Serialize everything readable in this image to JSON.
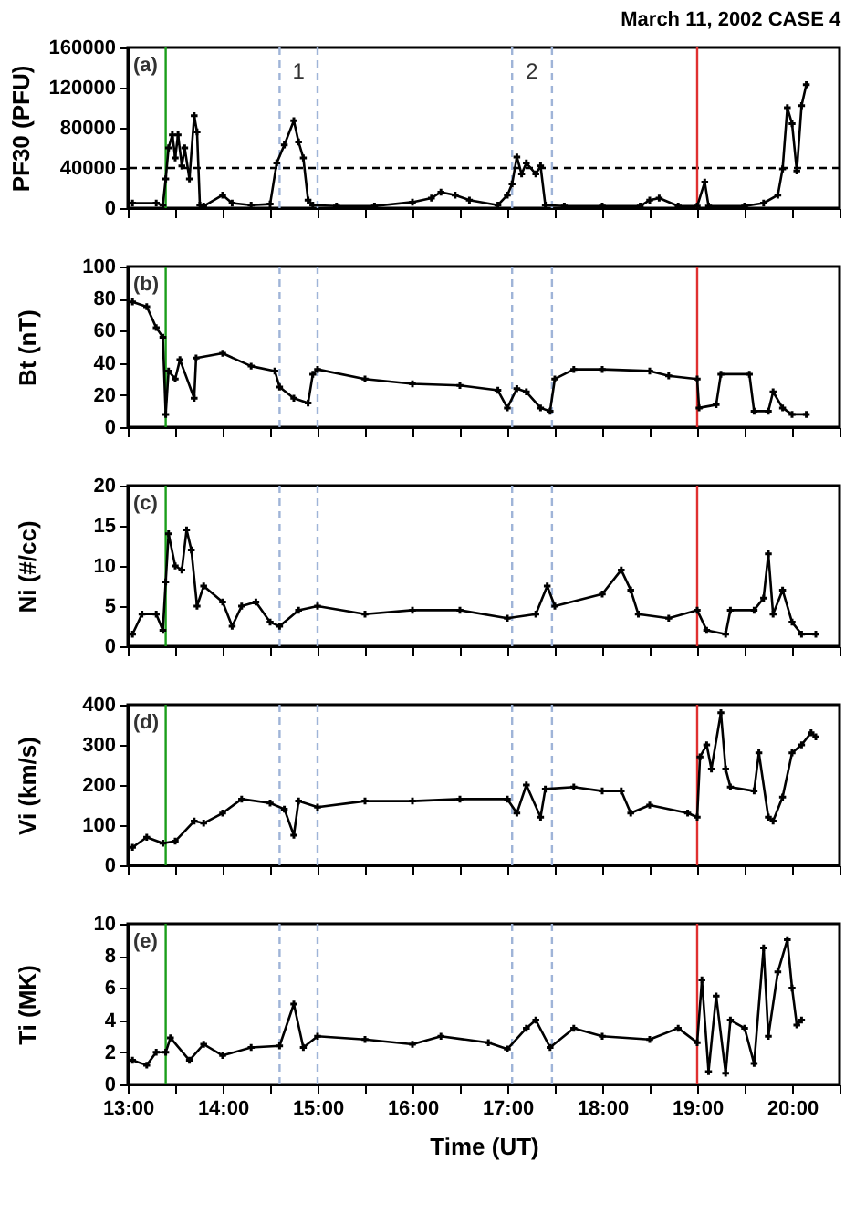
{
  "chart_data": [
    {
      "type": "line",
      "title": "March 11, 2002 CASE 4",
      "ylabel": "PF30 (PFU)",
      "marker": "cross",
      "tick_labels": "y",
      "xlim": [
        13,
        20.5
      ],
      "xticks": [
        {
          "value": 13,
          "label": null
        },
        {
          "value": 13.5,
          "label": null
        },
        {
          "value": 14,
          "label": null
        },
        {
          "value": 14.5,
          "label": null
        },
        {
          "value": 15,
          "label": null
        },
        {
          "value": 15.5,
          "label": null
        },
        {
          "value": 16,
          "label": null
        },
        {
          "value": 16.5,
          "label": null
        },
        {
          "value": 17,
          "label": null
        },
        {
          "value": 17.5,
          "label": null
        },
        {
          "value": 18,
          "label": null
        },
        {
          "value": 18.5,
          "label": null
        },
        {
          "value": 19,
          "label": null
        },
        {
          "value": 19.5,
          "label": null
        },
        {
          "value": 20,
          "label": null
        },
        {
          "value": 20.5,
          "label": null
        }
      ],
      "ylim": [
        0,
        160000
      ],
      "yticks": [
        0,
        40000,
        80000,
        120000,
        160000
      ],
      "x": [
        13.05,
        13.3,
        13.37,
        13.4,
        13.43,
        13.47,
        13.5,
        13.53,
        13.57,
        13.6,
        13.65,
        13.7,
        13.73,
        13.76,
        13.8,
        14.0,
        14.1,
        14.3,
        14.5,
        14.57,
        14.65,
        14.75,
        14.8,
        14.85,
        14.9,
        14.95,
        15.2,
        15.6,
        16.0,
        16.2,
        16.3,
        16.45,
        16.6,
        16.9,
        17.0,
        17.05,
        17.1,
        17.15,
        17.2,
        17.3,
        17.35,
        17.4,
        17.6,
        18.0,
        18.4,
        18.5,
        18.6,
        18.8,
        19.0,
        19.08,
        19.12,
        19.5,
        19.7,
        19.85,
        19.9,
        19.95,
        20.0,
        20.05,
        20.1,
        20.15
      ],
      "series": [
        {
          "color": "#000000",
          "values": [
            5000,
            5000,
            3000,
            29000,
            60000,
            73000,
            50000,
            73000,
            42000,
            60000,
            29000,
            92000,
            76000,
            3000,
            2000,
            13000,
            5000,
            3000,
            4000,
            45000,
            63000,
            87000,
            66000,
            50000,
            8000,
            3000,
            2000,
            2000,
            6000,
            10000,
            16000,
            13000,
            8000,
            3000,
            13000,
            24000,
            51000,
            34000,
            45000,
            34000,
            42000,
            3000,
            2000,
            2000,
            2000,
            8000,
            10000,
            2000,
            2000,
            26000,
            2000,
            2000,
            5000,
            13000,
            39000,
            100000,
            84000,
            37000,
            102000,
            123000
          ]
        }
      ],
      "ref_lines": [
        {
          "axis": "y",
          "value": 40000,
          "color": "#000000",
          "line_style": "dashed"
        },
        {
          "axis": "x",
          "value": 13.4,
          "color": "#1a9e1a",
          "line_style": "solid"
        },
        {
          "axis": "x",
          "value": 14.6,
          "color": "#9fb4d8",
          "line_style": "dashed"
        },
        {
          "axis": "x",
          "value": 15.0,
          "color": "#9fb4d8",
          "line_style": "dashed"
        },
        {
          "axis": "x",
          "value": 17.05,
          "color": "#9fb4d8",
          "line_style": "dashed"
        },
        {
          "axis": "x",
          "value": 17.47,
          "color": "#9fb4d8",
          "line_style": "dashed"
        },
        {
          "axis": "x",
          "value": 19.0,
          "color": "#e03030",
          "line_style": "solid"
        }
      ],
      "annotations": [
        "(a)",
        "1",
        "2"
      ]
    },
    {
      "type": "line",
      "ylabel": "Bt (nT)",
      "marker": "cross",
      "tick_labels": "y",
      "xlim": [
        13,
        20.5
      ],
      "xticks": [
        {
          "value": 13,
          "label": null
        },
        {
          "value": 13.5,
          "label": null
        },
        {
          "value": 14,
          "label": null
        },
        {
          "value": 14.5,
          "label": null
        },
        {
          "value": 15,
          "label": null
        },
        {
          "value": 15.5,
          "label": null
        },
        {
          "value": 16,
          "label": null
        },
        {
          "value": 16.5,
          "label": null
        },
        {
          "value": 17,
          "label": null
        },
        {
          "value": 17.5,
          "label": null
        },
        {
          "value": 18,
          "label": null
        },
        {
          "value": 18.5,
          "label": null
        },
        {
          "value": 19,
          "label": null
        },
        {
          "value": 19.5,
          "label": null
        },
        {
          "value": 20,
          "label": null
        },
        {
          "value": 20.5,
          "label": null
        }
      ],
      "ylim": [
        0,
        100
      ],
      "yticks": [
        0,
        20,
        40,
        60,
        80,
        100
      ],
      "x": [
        13.05,
        13.2,
        13.3,
        13.37,
        13.4,
        13.43,
        13.5,
        13.55,
        13.7,
        13.72,
        14.0,
        14.3,
        14.55,
        14.6,
        14.75,
        14.9,
        14.95,
        15.0,
        15.5,
        16.0,
        16.5,
        16.9,
        17.0,
        17.1,
        17.2,
        17.35,
        17.45,
        17.5,
        17.7,
        18.0,
        18.5,
        18.7,
        19.0,
        19.02,
        19.2,
        19.25,
        19.55,
        19.6,
        19.75,
        19.8,
        19.9,
        20.0,
        20.15
      ],
      "series": [
        {
          "color": "#000000",
          "values": [
            78,
            75,
            62,
            56,
            8,
            35,
            30,
            42,
            18,
            43,
            46,
            38,
            35,
            25,
            18,
            15,
            33,
            36,
            30,
            27,
            26,
            23,
            12,
            24,
            22,
            12,
            10,
            30,
            36,
            36,
            35,
            32,
            30,
            12,
            14,
            33,
            33,
            10,
            10,
            22,
            12,
            8,
            8
          ]
        }
      ],
      "ref_lines": [
        {
          "axis": "x",
          "value": 13.4,
          "color": "#1a9e1a",
          "line_style": "solid"
        },
        {
          "axis": "x",
          "value": 14.6,
          "color": "#9fb4d8",
          "line_style": "dashed"
        },
        {
          "axis": "x",
          "value": 15.0,
          "color": "#9fb4d8",
          "line_style": "dashed"
        },
        {
          "axis": "x",
          "value": 17.05,
          "color": "#9fb4d8",
          "line_style": "dashed"
        },
        {
          "axis": "x",
          "value": 17.47,
          "color": "#9fb4d8",
          "line_style": "dashed"
        },
        {
          "axis": "x",
          "value": 19.0,
          "color": "#e03030",
          "line_style": "solid"
        }
      ],
      "annotations": [
        "(b)"
      ]
    },
    {
      "type": "line",
      "ylabel": "Ni (#/cc)",
      "marker": "cross",
      "tick_labels": "y",
      "xlim": [
        13,
        20.5
      ],
      "xticks": [
        {
          "value": 13,
          "label": null
        },
        {
          "value": 13.5,
          "label": null
        },
        {
          "value": 14,
          "label": null
        },
        {
          "value": 14.5,
          "label": null
        },
        {
          "value": 15,
          "label": null
        },
        {
          "value": 15.5,
          "label": null
        },
        {
          "value": 16,
          "label": null
        },
        {
          "value": 16.5,
          "label": null
        },
        {
          "value": 17,
          "label": null
        },
        {
          "value": 17.5,
          "label": null
        },
        {
          "value": 18,
          "label": null
        },
        {
          "value": 18.5,
          "label": null
        },
        {
          "value": 19,
          "label": null
        },
        {
          "value": 19.5,
          "label": null
        },
        {
          "value": 20,
          "label": null
        },
        {
          "value": 20.5,
          "label": null
        }
      ],
      "ylim": [
        0,
        20
      ],
      "yticks": [
        0,
        5,
        10,
        15,
        20
      ],
      "x": [
        13.05,
        13.15,
        13.3,
        13.37,
        13.4,
        13.43,
        13.5,
        13.57,
        13.62,
        13.67,
        13.73,
        13.8,
        14.0,
        14.1,
        14.2,
        14.35,
        14.5,
        14.6,
        14.8,
        15.0,
        15.5,
        16.0,
        16.5,
        17.0,
        17.3,
        17.42,
        17.5,
        18.0,
        18.2,
        18.3,
        18.38,
        18.7,
        19.0,
        19.1,
        19.3,
        19.35,
        19.6,
        19.7,
        19.75,
        19.8,
        19.9,
        20.0,
        20.1,
        20.25
      ],
      "series": [
        {
          "color": "#000000",
          "values": [
            1.5,
            4,
            4,
            2,
            8,
            14,
            10,
            9.5,
            14.5,
            12,
            5,
            7.5,
            5.5,
            2.5,
            5,
            5.5,
            3,
            2.5,
            4.5,
            5,
            4,
            4.5,
            4.5,
            3.5,
            4,
            7.5,
            5,
            6.5,
            9.5,
            7,
            4,
            3.5,
            4.5,
            2,
            1.5,
            4.5,
            4.5,
            6,
            11.5,
            4,
            7,
            3,
            1.5,
            1.5
          ]
        }
      ],
      "ref_lines": [
        {
          "axis": "x",
          "value": 13.4,
          "color": "#1a9e1a",
          "line_style": "solid"
        },
        {
          "axis": "x",
          "value": 14.6,
          "color": "#9fb4d8",
          "line_style": "dashed"
        },
        {
          "axis": "x",
          "value": 15.0,
          "color": "#9fb4d8",
          "line_style": "dashed"
        },
        {
          "axis": "x",
          "value": 17.05,
          "color": "#9fb4d8",
          "line_style": "dashed"
        },
        {
          "axis": "x",
          "value": 17.47,
          "color": "#9fb4d8",
          "line_style": "dashed"
        },
        {
          "axis": "x",
          "value": 19.0,
          "color": "#e03030",
          "line_style": "solid"
        }
      ],
      "annotations": [
        "(c)"
      ]
    },
    {
      "type": "line",
      "ylabel": "Vi (km/s)",
      "marker": "cross",
      "tick_labels": "y",
      "xlim": [
        13,
        20.5
      ],
      "xticks": [
        {
          "value": 13,
          "label": null
        },
        {
          "value": 13.5,
          "label": null
        },
        {
          "value": 14,
          "label": null
        },
        {
          "value": 14.5,
          "label": null
        },
        {
          "value": 15,
          "label": null
        },
        {
          "value": 15.5,
          "label": null
        },
        {
          "value": 16,
          "label": null
        },
        {
          "value": 16.5,
          "label": null
        },
        {
          "value": 17,
          "label": null
        },
        {
          "value": 17.5,
          "label": null
        },
        {
          "value": 18,
          "label": null
        },
        {
          "value": 18.5,
          "label": null
        },
        {
          "value": 19,
          "label": null
        },
        {
          "value": 19.5,
          "label": null
        },
        {
          "value": 20,
          "label": null
        },
        {
          "value": 20.5,
          "label": null
        }
      ],
      "ylim": [
        0,
        400
      ],
      "yticks": [
        0,
        100,
        200,
        300,
        400
      ],
      "x": [
        13.05,
        13.2,
        13.37,
        13.5,
        13.7,
        13.8,
        14.0,
        14.2,
        14.5,
        14.65,
        14.75,
        14.8,
        15.0,
        15.5,
        16.0,
        16.5,
        17.0,
        17.1,
        17.2,
        17.35,
        17.4,
        17.7,
        18.0,
        18.2,
        18.3,
        18.5,
        18.9,
        19.0,
        19.03,
        19.1,
        19.15,
        19.25,
        19.3,
        19.35,
        19.6,
        19.65,
        19.75,
        19.8,
        19.9,
        20.0,
        20.1,
        20.2,
        20.25
      ],
      "series": [
        {
          "color": "#000000",
          "values": [
            45,
            70,
            55,
            60,
            110,
            105,
            130,
            165,
            155,
            140,
            75,
            160,
            145,
            160,
            160,
            165,
            165,
            130,
            200,
            120,
            190,
            195,
            185,
            185,
            130,
            150,
            130,
            120,
            270,
            300,
            240,
            380,
            240,
            195,
            185,
            280,
            120,
            110,
            170,
            280,
            300,
            330,
            320
          ]
        }
      ],
      "ref_lines": [
        {
          "axis": "x",
          "value": 13.4,
          "color": "#1a9e1a",
          "line_style": "solid"
        },
        {
          "axis": "x",
          "value": 14.6,
          "color": "#9fb4d8",
          "line_style": "dashed"
        },
        {
          "axis": "x",
          "value": 15.0,
          "color": "#9fb4d8",
          "line_style": "dashed"
        },
        {
          "axis": "x",
          "value": 17.05,
          "color": "#9fb4d8",
          "line_style": "dashed"
        },
        {
          "axis": "x",
          "value": 17.47,
          "color": "#9fb4d8",
          "line_style": "dashed"
        },
        {
          "axis": "x",
          "value": 19.0,
          "color": "#e03030",
          "line_style": "solid"
        }
      ],
      "annotations": [
        "(d)"
      ]
    },
    {
      "type": "line",
      "ylabel": "Ti (MK)",
      "xlabel": "Time (UT)",
      "marker": "cross",
      "xlim": [
        13,
        20.5
      ],
      "xticks": [
        {
          "value": 13,
          "label": "13:00"
        },
        {
          "value": 13.5,
          "label": null
        },
        {
          "value": 14,
          "label": "14:00"
        },
        {
          "value": 14.5,
          "label": null
        },
        {
          "value": 15,
          "label": "15:00"
        },
        {
          "value": 15.5,
          "label": null
        },
        {
          "value": 16,
          "label": "16:00"
        },
        {
          "value": 16.5,
          "label": null
        },
        {
          "value": 17,
          "label": "17:00"
        },
        {
          "value": 17.5,
          "label": null
        },
        {
          "value": 18,
          "label": "18:00"
        },
        {
          "value": 18.5,
          "label": null
        },
        {
          "value": 19,
          "label": "19:00"
        },
        {
          "value": 19.5,
          "label": null
        },
        {
          "value": 20,
          "label": "20:00"
        },
        {
          "value": 20.5,
          "label": null
        }
      ],
      "ylim": [
        0,
        10
      ],
      "yticks": [
        0,
        2,
        4,
        6,
        8,
        10
      ],
      "x": [
        13.05,
        13.2,
        13.3,
        13.4,
        13.45,
        13.65,
        13.8,
        14.0,
        14.3,
        14.6,
        14.75,
        14.85,
        15.0,
        15.5,
        16.0,
        16.3,
        16.8,
        17.0,
        17.2,
        17.3,
        17.45,
        17.7,
        18.0,
        18.5,
        18.8,
        19.0,
        19.05,
        19.12,
        19.2,
        19.3,
        19.35,
        19.5,
        19.6,
        19.7,
        19.75,
        19.85,
        19.95,
        20.0,
        20.05,
        20.1
      ],
      "series": [
        {
          "color": "#000000",
          "values": [
            1.5,
            1.2,
            2,
            2,
            2.9,
            1.5,
            2.5,
            1.8,
            2.3,
            2.4,
            5,
            2.3,
            3,
            2.8,
            2.5,
            3,
            2.6,
            2.2,
            3.5,
            4,
            2.3,
            3.5,
            3,
            2.8,
            3.5,
            2.6,
            6.5,
            0.8,
            5.5,
            0.7,
            4,
            3.5,
            1.3,
            8.5,
            3,
            7,
            9,
            6,
            3.7,
            4
          ]
        }
      ],
      "ref_lines": [
        {
          "axis": "x",
          "value": 13.4,
          "color": "#1a9e1a",
          "line_style": "solid"
        },
        {
          "axis": "x",
          "value": 14.6,
          "color": "#9fb4d8",
          "line_style": "dashed"
        },
        {
          "axis": "x",
          "value": 15.0,
          "color": "#9fb4d8",
          "line_style": "dashed"
        },
        {
          "axis": "x",
          "value": 17.05,
          "color": "#9fb4d8",
          "line_style": "dashed"
        },
        {
          "axis": "x",
          "value": 17.47,
          "color": "#9fb4d8",
          "line_style": "dashed"
        },
        {
          "axis": "x",
          "value": 19.0,
          "color": "#e03030",
          "line_style": "solid"
        }
      ],
      "annotations": [
        "(e)"
      ]
    }
  ]
}
